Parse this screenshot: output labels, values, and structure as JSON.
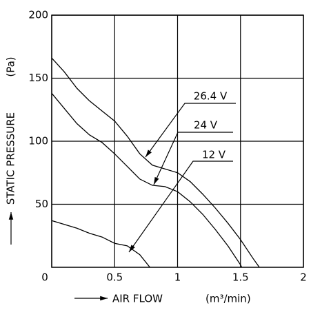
{
  "chart_data": {
    "type": "line",
    "x_label": "AIR FLOW",
    "x_unit": "(m³/min)",
    "y_label": "STATIC PRESSURE",
    "y_unit": "(Pa)",
    "xlim": [
      0,
      2
    ],
    "xticks": [
      0,
      0.5,
      1,
      1.5,
      2
    ],
    "ylim": [
      0,
      200
    ],
    "yticks": [
      50,
      100,
      150,
      200
    ],
    "grid": true,
    "series": [
      {
        "name": "26.4 V",
        "color": "#000000",
        "x": [
          0,
          0.1,
          0.2,
          0.3,
          0.4,
          0.5,
          0.6,
          0.7,
          0.8,
          0.9,
          1.0,
          1.1,
          1.2,
          1.3,
          1.4,
          1.5,
          1.6,
          1.65
        ],
        "values": [
          166,
          155,
          142,
          132,
          124,
          116,
          104,
          90,
          81,
          78,
          75,
          68,
          58,
          47,
          35,
          22,
          7,
          0
        ]
      },
      {
        "name": "24 V",
        "color": "#000000",
        "x": [
          0,
          0.1,
          0.2,
          0.3,
          0.4,
          0.5,
          0.6,
          0.7,
          0.8,
          0.9,
          1.0,
          1.1,
          1.2,
          1.3,
          1.4,
          1.5,
          1.51
        ],
        "values": [
          138,
          126,
          114,
          105,
          99,
          90,
          80,
          70,
          65,
          64,
          60,
          52,
          42,
          30,
          17,
          2,
          0
        ]
      },
      {
        "name": "12 V",
        "color": "#000000",
        "x": [
          0,
          0.1,
          0.2,
          0.3,
          0.4,
          0.5,
          0.6,
          0.7,
          0.78
        ],
        "values": [
          37,
          34,
          31,
          27,
          24,
          19,
          17,
          10,
          0
        ]
      }
    ]
  }
}
